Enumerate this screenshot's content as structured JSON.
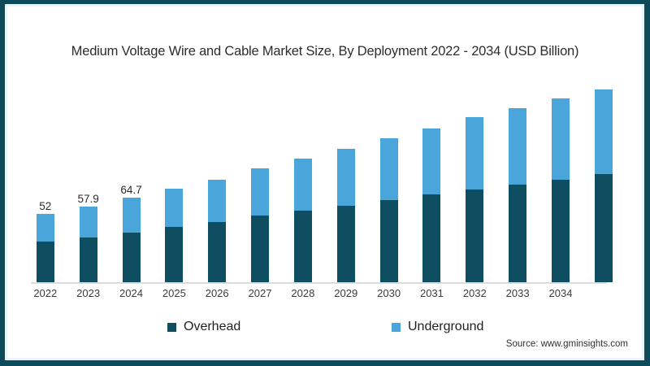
{
  "title": "Medium Voltage Wire and Cable Market Size, By Deployment 2022 - 2034 (USD Billion)",
  "source": "Source: www.gminsights.com",
  "colors": {
    "overhead": "#0f4e61",
    "underground": "#4aa6da",
    "frame_border": "#0d4a5c",
    "frame_inner_strip": "#e9f4f9",
    "axis_line": "#dcdcdc"
  },
  "legend": {
    "items": [
      {
        "label": "Overhead",
        "color": "#0f4e61"
      },
      {
        "label": "Underground",
        "color": "#4aa6da"
      }
    ]
  },
  "chart_data": {
    "type": "bar",
    "stacked": true,
    "title": "Medium Voltage Wire and Cable Market Size, By Deployment 2022 - 2034 (USD Billion)",
    "unit": "USD Billion",
    "categories": [
      "2022",
      "2023",
      "2024",
      "2025",
      "2026",
      "2027",
      "2028",
      "2029",
      "2030",
      "2031",
      "2032",
      "2033",
      "2034",
      ""
    ],
    "series": [
      {
        "name": "Overhead",
        "color": "#0f4e61",
        "values": [
          31.2,
          34.3,
          37.9,
          42.0,
          46.0,
          50.9,
          54.7,
          58.6,
          62.9,
          67.1,
          70.6,
          74.7,
          78.3,
          82.4
        ]
      },
      {
        "name": "Underground",
        "color": "#4aa6da",
        "values": [
          20.8,
          23.6,
          26.8,
          29.5,
          32.2,
          35.8,
          39.7,
          43.1,
          47.0,
          50.1,
          55.3,
          58.4,
          62.2,
          64.8
        ]
      }
    ],
    "totals": [
      52,
      57.9,
      64.7,
      71.5,
      78.2,
      86.7,
      94.4,
      101.7,
      109.9,
      117.2,
      125.9,
      133.1,
      140.5,
      147.2
    ],
    "bar_value_labels": [
      "52",
      "57.9",
      "64.7",
      "",
      "",
      "",
      "",
      "",
      "",
      "",
      "",
      "",
      "",
      ""
    ],
    "xlabel": "",
    "ylabel": "",
    "grid": false,
    "legend_position": "bottom"
  }
}
